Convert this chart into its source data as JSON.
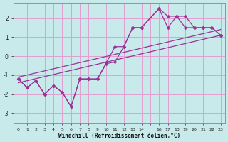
{
  "xlabel": "Windchill (Refroidissement éolien,°C)",
  "bg_color": "#c8eaea",
  "grid_color": "#e0a0d0",
  "line_color": "#993399",
  "xlim": [
    -0.5,
    23.5
  ],
  "ylim": [
    -3.5,
    2.8
  ],
  "xticks": [
    0,
    1,
    2,
    3,
    4,
    5,
    6,
    7,
    8,
    9,
    10,
    11,
    12,
    13,
    14,
    15,
    16,
    17,
    18,
    19,
    20,
    21,
    22,
    23
  ],
  "xtick_labels": [
    "0",
    "1",
    "2",
    "3",
    "4",
    "5",
    "6",
    "7",
    "8",
    "9",
    "10",
    "11",
    "12",
    "13",
    "14",
    "",
    "16",
    "17",
    "18",
    "19",
    "20",
    "21",
    "22",
    "23"
  ],
  "yticks": [
    -3,
    -2,
    -1,
    0,
    1,
    2
  ],
  "line1_x": [
    0,
    1,
    2,
    3,
    4,
    5,
    6,
    7,
    8,
    9,
    10,
    11,
    12,
    13,
    14,
    16,
    17,
    18,
    19,
    20,
    21,
    22,
    23
  ],
  "line1_y": [
    -1.2,
    -1.65,
    -1.3,
    -2.0,
    -1.55,
    -1.9,
    -2.65,
    -1.2,
    -1.2,
    -1.2,
    -0.35,
    0.5,
    0.5,
    1.5,
    1.5,
    2.5,
    1.5,
    2.1,
    2.1,
    1.5,
    1.5,
    1.5,
    1.1
  ],
  "line2_x": [
    0,
    1,
    2,
    3,
    4,
    5,
    6,
    7,
    8,
    9,
    10,
    11,
    12,
    13,
    14,
    16,
    17,
    18,
    19,
    20,
    21,
    22,
    23
  ],
  "line2_y": [
    -1.2,
    -1.65,
    -1.3,
    -2.0,
    -1.55,
    -1.9,
    -2.65,
    -1.2,
    -1.2,
    -1.2,
    -0.4,
    -0.3,
    0.5,
    1.5,
    1.5,
    2.5,
    2.1,
    2.1,
    1.5,
    1.5,
    1.5,
    1.5,
    1.1
  ],
  "trend1_x": [
    0,
    23
  ],
  "trend1_y": [
    -1.4,
    1.1
  ],
  "trend2_x": [
    0,
    23
  ],
  "trend2_y": [
    -1.1,
    1.4
  ]
}
